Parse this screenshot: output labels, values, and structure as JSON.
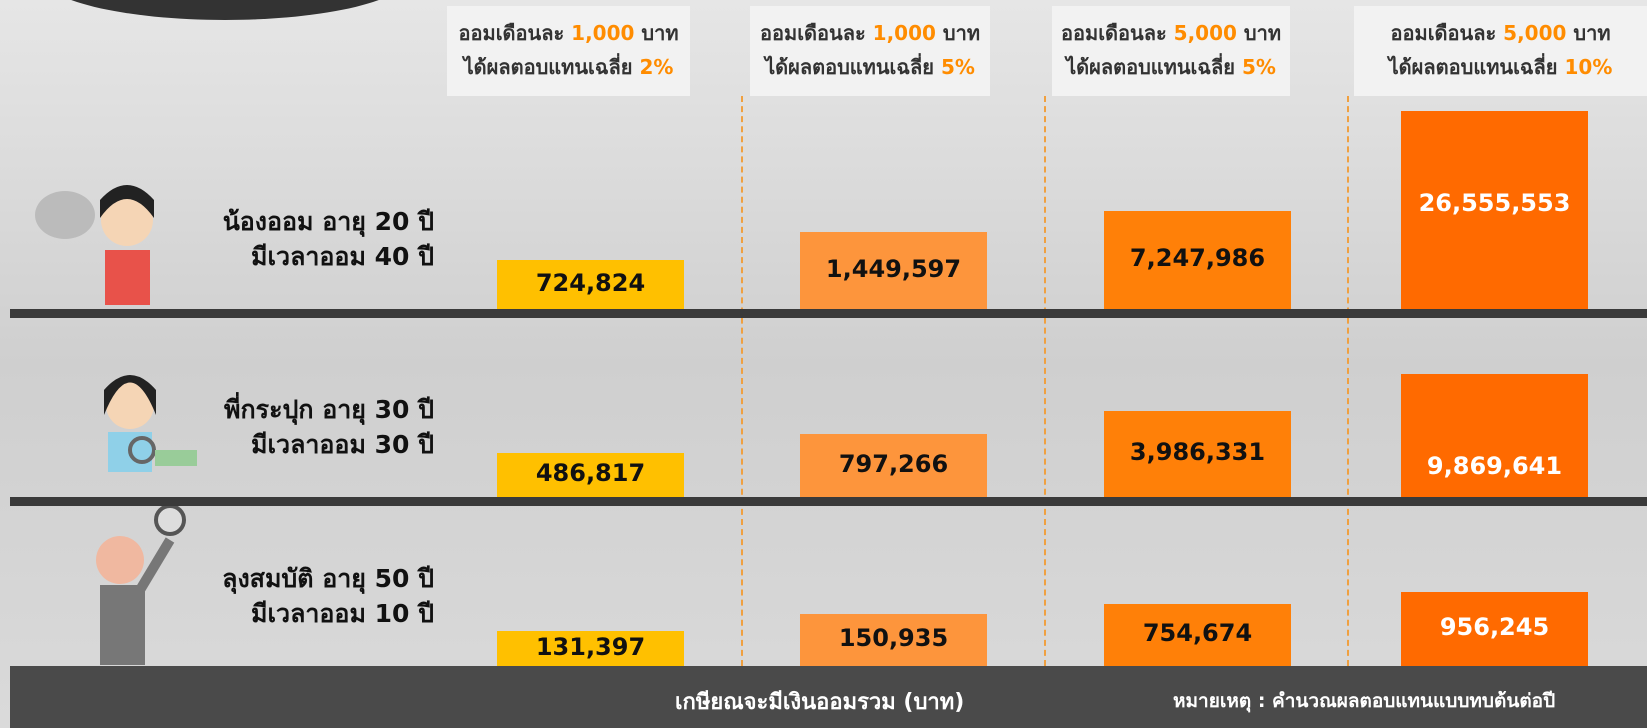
{
  "columns": [
    {
      "line1_prefix": "ออมเดือนละ",
      "amount": "1,000",
      "line1_suffix": "บาท",
      "line2_prefix": "ได้ผลตอบแทนเฉลี่ย",
      "rate": "2%"
    },
    {
      "line1_prefix": "ออมเดือนละ",
      "amount": "1,000",
      "line1_suffix": "บาท",
      "line2_prefix": "ได้ผลตอบแทนเฉลี่ย",
      "rate": "5%"
    },
    {
      "line1_prefix": "ออมเดือนละ",
      "amount": "5,000",
      "line1_suffix": "บาท",
      "line2_prefix": "ได้ผลตอบแทนเฉลี่ย",
      "rate": "5%"
    },
    {
      "line1_prefix": "ออมเดือนละ",
      "amount": "5,000",
      "line1_suffix": "บาท",
      "line2_prefix": "ได้ผลตอบแทนเฉลี่ย",
      "rate": "10%"
    }
  ],
  "rows": [
    {
      "name_line1": "น้องออม อายุ 20 ปี",
      "name_line2": "มีเวลาออม 40 ปี",
      "values": [
        "724,824",
        "1,449,597",
        "7,247,986",
        "26,555,553"
      ]
    },
    {
      "name_line1": "พี่กระปุก อายุ 30 ปี",
      "name_line2": "มีเวลาออม 30 ปี",
      "values": [
        "486,817",
        "797,266",
        "3,986,331",
        "9,869,641"
      ]
    },
    {
      "name_line1": "ลุงสมบัติ อายุ 50 ปี",
      "name_line2": "มีเวลาออม 10 ปี",
      "values": [
        "131,397",
        "150,935",
        "754,674",
        "956,245"
      ]
    }
  ],
  "footer": {
    "caption": "เกษียณจะมีเงินออมรวม (บาท)",
    "note": "หมายเหตุ : คำนวณผลตอบแทนแบบทบต้นต่อปี"
  }
}
